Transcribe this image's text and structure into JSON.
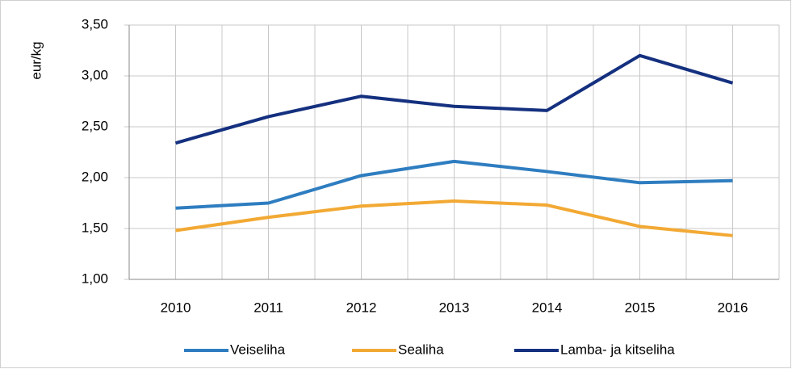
{
  "chart_data": {
    "type": "line",
    "y_label": "eur/kg",
    "categories": [
      "2010",
      "2011",
      "2012",
      "2013",
      "2014",
      "2015",
      "2016"
    ],
    "series": [
      {
        "name": "Veiseliha",
        "color": "#2e7dc0",
        "values": [
          1.7,
          1.75,
          2.02,
          2.16,
          2.06,
          1.95,
          1.97
        ]
      },
      {
        "name": "Sealiha",
        "color": "#f2a934",
        "values": [
          1.48,
          1.61,
          1.72,
          1.77,
          1.73,
          1.52,
          1.43
        ]
      },
      {
        "name": "Lamba- ja kitseliha",
        "color": "#14307f",
        "values": [
          2.34,
          2.6,
          2.8,
          2.7,
          2.66,
          3.2,
          2.93
        ]
      }
    ],
    "ylim": [
      1,
      3.5
    ],
    "yticks": [
      {
        "value": 1,
        "label": "1,00"
      },
      {
        "value": 1.5,
        "label": "1,50"
      },
      {
        "value": 2,
        "label": "2,00"
      },
      {
        "value": 2.5,
        "label": "2,50"
      },
      {
        "value": 3,
        "label": "3,00"
      },
      {
        "value": 3.5,
        "label": "3,50"
      }
    ],
    "grid": true,
    "legend": "bottom"
  }
}
